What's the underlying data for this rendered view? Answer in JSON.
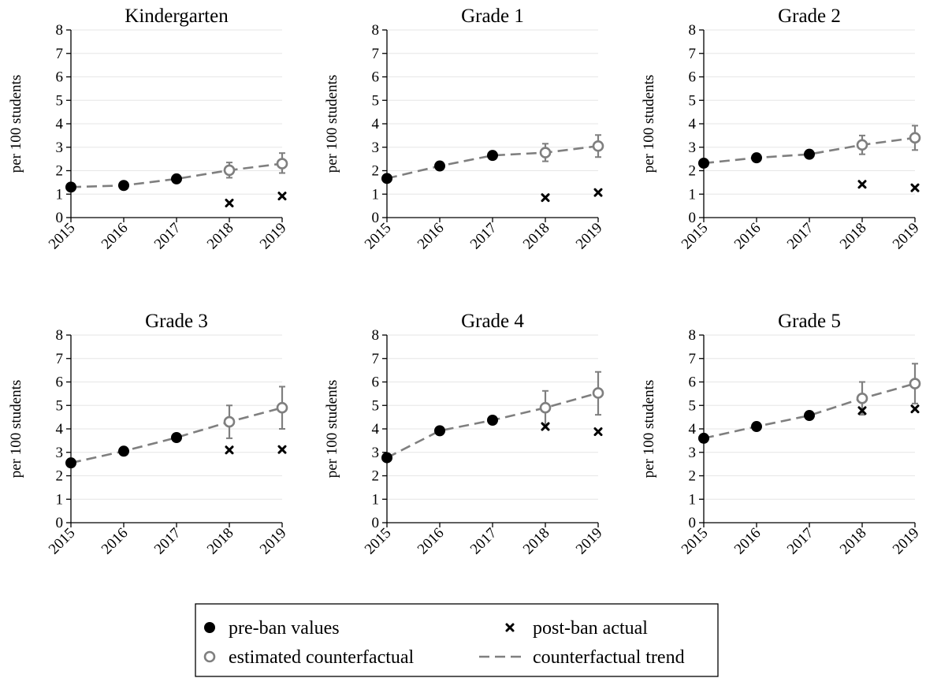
{
  "chart_data": [
    {
      "type": "scatter",
      "title": "Kindergarten",
      "ylabel": "per 100 students",
      "xlabel": "",
      "ylim": [
        0,
        8
      ],
      "yticks": [
        "0",
        "1",
        "2",
        "3",
        "4",
        "5",
        "6",
        "7",
        "8"
      ],
      "x": [
        2015,
        2016,
        2017,
        2018,
        2019
      ],
      "series": [
        {
          "name": "pre-ban values",
          "x": [
            2015,
            2016,
            2017
          ],
          "values": [
            1.3,
            1.37,
            1.65
          ]
        },
        {
          "name": "estimated counterfactual",
          "x": [
            2018,
            2019
          ],
          "values": [
            2.02,
            2.3
          ],
          "ci_low": [
            1.7,
            1.9
          ],
          "ci_high": [
            2.35,
            2.75
          ]
        },
        {
          "name": "post-ban actual",
          "x": [
            2018,
            2019
          ],
          "values": [
            0.62,
            0.92
          ]
        },
        {
          "name": "counterfactual trend",
          "x": [
            2015,
            2016,
            2017,
            2018,
            2019
          ],
          "values": [
            1.3,
            1.37,
            1.65,
            2.02,
            2.3
          ]
        }
      ]
    },
    {
      "type": "scatter",
      "title": "Grade 1",
      "ylabel": "per 100 students",
      "xlabel": "",
      "ylim": [
        0,
        8
      ],
      "yticks": [
        "0",
        "1",
        "2",
        "3",
        "4",
        "5",
        "6",
        "7",
        "8"
      ],
      "x": [
        2015,
        2016,
        2017,
        2018,
        2019
      ],
      "series": [
        {
          "name": "pre-ban values",
          "x": [
            2015,
            2016,
            2017
          ],
          "values": [
            1.67,
            2.2,
            2.65
          ]
        },
        {
          "name": "estimated counterfactual",
          "x": [
            2018,
            2019
          ],
          "values": [
            2.77,
            3.05
          ],
          "ci_low": [
            2.4,
            2.58
          ],
          "ci_high": [
            3.15,
            3.52
          ]
        },
        {
          "name": "post-ban actual",
          "x": [
            2018,
            2019
          ],
          "values": [
            0.85,
            1.07
          ]
        },
        {
          "name": "counterfactual trend",
          "x": [
            2015,
            2016,
            2017,
            2018,
            2019
          ],
          "values": [
            1.67,
            2.2,
            2.65,
            2.77,
            3.05
          ]
        }
      ]
    },
    {
      "type": "scatter",
      "title": "Grade 2",
      "ylabel": "per 100 students",
      "xlabel": "",
      "ylim": [
        0,
        8
      ],
      "yticks": [
        "0",
        "1",
        "2",
        "3",
        "4",
        "5",
        "6",
        "7",
        "8"
      ],
      "x": [
        2015,
        2016,
        2017,
        2018,
        2019
      ],
      "series": [
        {
          "name": "pre-ban values",
          "x": [
            2015,
            2016,
            2017
          ],
          "values": [
            2.32,
            2.55,
            2.7
          ]
        },
        {
          "name": "estimated counterfactual",
          "x": [
            2018,
            2019
          ],
          "values": [
            3.1,
            3.4
          ],
          "ci_low": [
            2.7,
            2.88
          ],
          "ci_high": [
            3.5,
            3.92
          ]
        },
        {
          "name": "post-ban actual",
          "x": [
            2018,
            2019
          ],
          "values": [
            1.42,
            1.27
          ]
        },
        {
          "name": "counterfactual trend",
          "x": [
            2015,
            2016,
            2017,
            2018,
            2019
          ],
          "values": [
            2.32,
            2.55,
            2.7,
            3.1,
            3.4
          ]
        }
      ]
    },
    {
      "type": "scatter",
      "title": "Grade 3",
      "ylabel": "per 100 students",
      "xlabel": "",
      "ylim": [
        0,
        8
      ],
      "yticks": [
        "0",
        "1",
        "2",
        "3",
        "4",
        "5",
        "6",
        "7",
        "8"
      ],
      "x": [
        2015,
        2016,
        2017,
        2018,
        2019
      ],
      "series": [
        {
          "name": "pre-ban values",
          "x": [
            2015,
            2016,
            2017
          ],
          "values": [
            2.55,
            3.05,
            3.63
          ]
        },
        {
          "name": "estimated counterfactual",
          "x": [
            2018,
            2019
          ],
          "values": [
            4.3,
            4.9
          ],
          "ci_low": [
            3.6,
            4.0
          ],
          "ci_high": [
            5.0,
            5.8
          ]
        },
        {
          "name": "post-ban actual",
          "x": [
            2018,
            2019
          ],
          "values": [
            3.1,
            3.12
          ]
        },
        {
          "name": "counterfactual trend",
          "x": [
            2015,
            2016,
            2017,
            2018,
            2019
          ],
          "values": [
            2.55,
            3.05,
            3.63,
            4.3,
            4.9
          ]
        }
      ]
    },
    {
      "type": "scatter",
      "title": "Grade 4",
      "ylabel": "per 100 students",
      "xlabel": "",
      "ylim": [
        0,
        8
      ],
      "yticks": [
        "0",
        "1",
        "2",
        "3",
        "4",
        "5",
        "6",
        "7",
        "8"
      ],
      "x": [
        2015,
        2016,
        2017,
        2018,
        2019
      ],
      "series": [
        {
          "name": "pre-ban values",
          "x": [
            2015,
            2016,
            2017
          ],
          "values": [
            2.77,
            3.92,
            4.37
          ]
        },
        {
          "name": "estimated counterfactual",
          "x": [
            2018,
            2019
          ],
          "values": [
            4.9,
            5.53
          ],
          "ci_low": [
            4.2,
            4.6
          ],
          "ci_high": [
            5.62,
            6.43
          ]
        },
        {
          "name": "post-ban actual",
          "x": [
            2018,
            2019
          ],
          "values": [
            4.1,
            3.88
          ]
        },
        {
          "name": "counterfactual trend",
          "x": [
            2015,
            2016,
            2017,
            2018,
            2019
          ],
          "values": [
            2.77,
            3.92,
            4.37,
            4.9,
            5.53
          ]
        }
      ]
    },
    {
      "type": "scatter",
      "title": "Grade 5",
      "ylabel": "per 100 students",
      "xlabel": "",
      "ylim": [
        0,
        8
      ],
      "yticks": [
        "0",
        "1",
        "2",
        "3",
        "4",
        "5",
        "6",
        "7",
        "8"
      ],
      "x": [
        2015,
        2016,
        2017,
        2018,
        2019
      ],
      "series": [
        {
          "name": "pre-ban values",
          "x": [
            2015,
            2016,
            2017
          ],
          "values": [
            3.6,
            4.1,
            4.57
          ]
        },
        {
          "name": "estimated counterfactual",
          "x": [
            2018,
            2019
          ],
          "values": [
            5.3,
            5.93
          ],
          "ci_low": [
            4.6,
            5.08
          ],
          "ci_high": [
            6.0,
            6.78
          ]
        },
        {
          "name": "post-ban actual",
          "x": [
            2018,
            2019
          ],
          "values": [
            4.78,
            4.85
          ]
        },
        {
          "name": "counterfactual trend",
          "x": [
            2015,
            2016,
            2017,
            2018,
            2019
          ],
          "values": [
            3.6,
            4.1,
            4.57,
            5.3,
            5.93
          ]
        }
      ]
    }
  ],
  "legend": {
    "placement": "bottom-center",
    "items": [
      {
        "label": "pre-ban values",
        "marker": "filled-circle"
      },
      {
        "label": "post-ban actual",
        "marker": "x"
      },
      {
        "label": "estimated counterfactual",
        "marker": "hollow-circle"
      },
      {
        "label": "counterfactual trend",
        "marker": "dashed-line"
      }
    ]
  },
  "colors": {
    "preban": "#000000",
    "counterfactual": "#7f7f7f",
    "postban": "#000000",
    "grid": "#e6e6e6"
  }
}
